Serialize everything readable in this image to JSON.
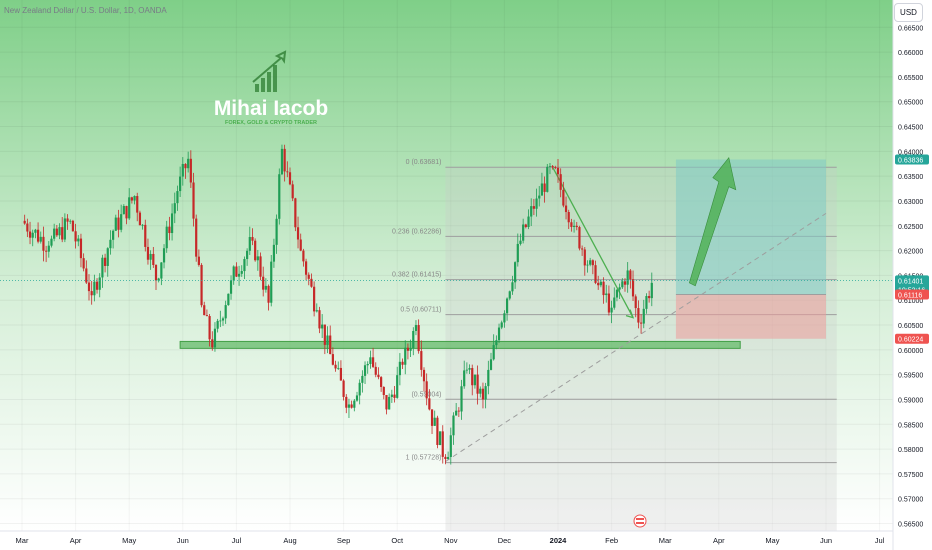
{
  "header": {
    "symbol_title": "New Zealand Dollar / U.S. Dollar, 1D, OANDA",
    "currency": "USD"
  },
  "watermark": {
    "name": "Mihai Iacob",
    "tagline": "FOREX, GOLD & CRYPTO TRADER"
  },
  "colors": {
    "bull": "#26a69a",
    "bear": "#ef5350",
    "candle_body_up": "#1f9d55",
    "candle_body_down": "#c62828",
    "bg_top": "#7fcf88",
    "bg_bottom": "#ffffff",
    "fib_line": "#9e9e9e",
    "zone_green": "#66bb6a",
    "target_box": "#80cbc4",
    "stop_box": "#ef9a9a",
    "arrow_green": "#4caf50"
  },
  "chart_data": {
    "type": "candlestick",
    "x_ticks": [
      "Mar",
      "Apr",
      "May",
      "Jun",
      "Jul",
      "Aug",
      "Sep",
      "Oct",
      "Nov",
      "Dec",
      "2024",
      "Feb",
      "Mar",
      "Apr",
      "May",
      "Jun",
      "Jul"
    ],
    "y_ticks": [
      "0.66500",
      "0.66000",
      "0.65500",
      "0.65000",
      "0.64500",
      "0.64000",
      "0.63500",
      "0.63000",
      "0.62500",
      "0.62000",
      "0.61500",
      "0.61000",
      "0.60500",
      "0.60000",
      "0.59500",
      "0.59000",
      "0.58500",
      "0.58000",
      "0.57500",
      "0.57000",
      "0.56500"
    ],
    "y_range": [
      0.5635,
      0.6705
    ],
    "x_range_months": [
      "2023-03",
      "2024-07"
    ],
    "price_labels": [
      {
        "value": 0.63836,
        "text": "0.63836",
        "role": "target"
      },
      {
        "value": 0.61401,
        "text": "0.61401",
        "countdown": "10:53:16",
        "role": "current"
      },
      {
        "value": 0.61116,
        "text": "0.61116",
        "role": "entry"
      },
      {
        "value": 0.60224,
        "text": "0.60224",
        "role": "stop"
      }
    ],
    "fib_levels": [
      {
        "label": "0 (0.63681)",
        "value": 0.63681
      },
      {
        "label": "0.236 (0.62286)",
        "value": 0.62286
      },
      {
        "label": "0.382 (0.61415)",
        "value": 0.61415
      },
      {
        "label": "0.5 (0.60711)",
        "value": 0.60711
      },
      {
        "label": "(0.59004)",
        "value": 0.59004
      },
      {
        "label": "1 (0.57728)",
        "value": 0.57728
      }
    ],
    "support_zone": [
      0.6003,
      0.6017
    ],
    "key_points": [
      {
        "t": 0.0,
        "v": 0.626
      },
      {
        "t": 0.5,
        "v": 0.621
      },
      {
        "t": 0.9,
        "v": 0.626
      },
      {
        "t": 1.3,
        "v": 0.611
      },
      {
        "t": 1.7,
        "v": 0.624
      },
      {
        "t": 2.1,
        "v": 0.631
      },
      {
        "t": 2.5,
        "v": 0.614
      },
      {
        "t": 2.9,
        "v": 0.632
      },
      {
        "t": 3.1,
        "v": 0.6385
      },
      {
        "t": 3.35,
        "v": 0.609
      },
      {
        "t": 3.55,
        "v": 0.6005
      },
      {
        "t": 3.9,
        "v": 0.614
      },
      {
        "t": 4.3,
        "v": 0.622
      },
      {
        "t": 4.6,
        "v": 0.6095
      },
      {
        "t": 4.85,
        "v": 0.6405
      },
      {
        "t": 5.2,
        "v": 0.62
      },
      {
        "t": 5.5,
        "v": 0.608
      },
      {
        "t": 5.8,
        "v": 0.597
      },
      {
        "t": 6.1,
        "v": 0.589
      },
      {
        "t": 6.5,
        "v": 0.5985
      },
      {
        "t": 6.8,
        "v": 0.588
      },
      {
        "t": 7.1,
        "v": 0.597
      },
      {
        "t": 7.35,
        "v": 0.605
      },
      {
        "t": 7.6,
        "v": 0.588
      },
      {
        "t": 7.9,
        "v": 0.578
      },
      {
        "t": 8.3,
        "v": 0.596
      },
      {
        "t": 8.6,
        "v": 0.59
      },
      {
        "t": 8.9,
        "v": 0.6045
      },
      {
        "t": 9.3,
        "v": 0.622
      },
      {
        "t": 9.6,
        "v": 0.6305
      },
      {
        "t": 9.9,
        "v": 0.6368
      },
      {
        "t": 10.3,
        "v": 0.625
      },
      {
        "t": 10.7,
        "v": 0.6135
      },
      {
        "t": 11.0,
        "v": 0.6085
      },
      {
        "t": 11.3,
        "v": 0.616
      },
      {
        "t": 11.5,
        "v": 0.6055
      },
      {
        "t": 11.75,
        "v": 0.6135
      }
    ]
  }
}
